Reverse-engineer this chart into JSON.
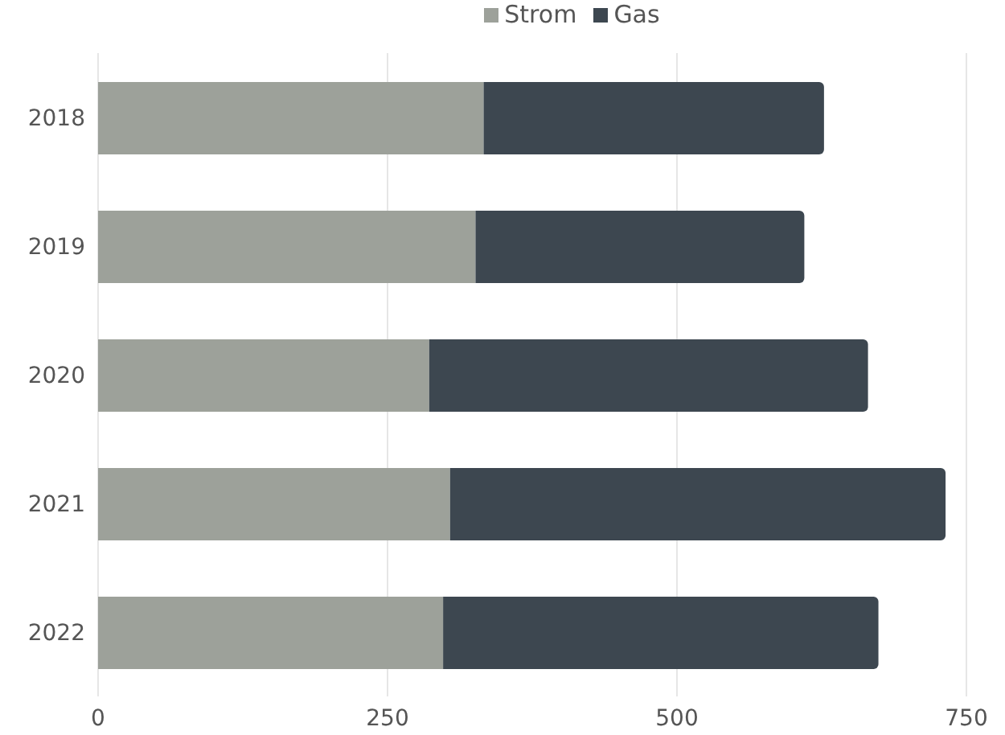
{
  "chart_data": {
    "type": "bar",
    "orientation": "horizontal",
    "stacked": true,
    "categories": [
      "2018",
      "2019",
      "2020",
      "2021",
      "2022"
    ],
    "series": [
      {
        "name": "Strom",
        "color": "#9da19a",
        "values": [
          333,
          326,
          286,
          304,
          298
        ]
      },
      {
        "name": "Gas",
        "color": "#3d4750",
        "values": [
          294,
          284,
          379,
          428,
          376
        ]
      }
    ],
    "xlim": [
      0,
      750
    ],
    "xticks": [
      0,
      250,
      500,
      750
    ],
    "grid": "x",
    "legend": "top"
  }
}
